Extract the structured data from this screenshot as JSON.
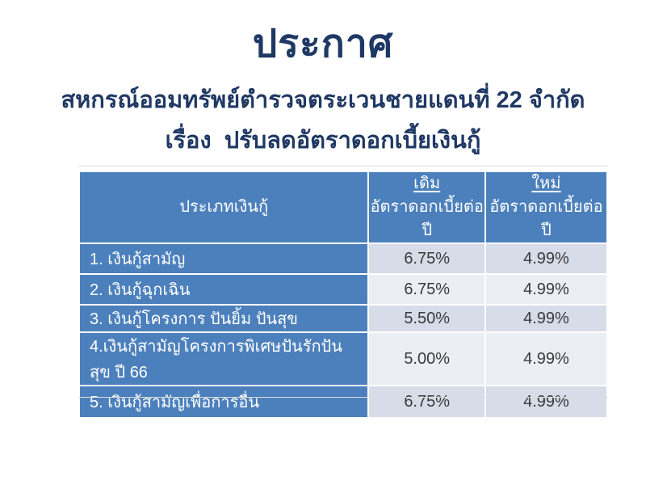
{
  "colors": {
    "title_navy": "#1F3864",
    "header_blue": "#4C80BC",
    "band_dark": "#D6DCE8",
    "band_light": "#EBEEF4",
    "body_text": "#3A3A3A"
  },
  "document": {
    "title": "ประกาศ",
    "org_line": "สหกรณ์ออมทรัพย์ตำรวจตระเวนชายแดนที่ 22 จำกัด",
    "subject_line": "เรื่อง  ปรับลดอัตราดอกเบี้ยเงินกู้"
  },
  "table": {
    "col1_header": "ประเภทเงินกู้",
    "col2_header_top": "เดิม",
    "col2_header_bottom": "อัตราดอกเบี้ยต่อปี",
    "col3_header_top": "ใหม่",
    "col3_header_bottom": "อัตราดอกเบี้ยต่อปี",
    "rows": [
      {
        "loan_type": "1. เงินกู้สามัญ",
        "old_rate": "6.75%",
        "new_rate": "4.99%"
      },
      {
        "loan_type": "2. เงินกู้ฉุกเฉิน",
        "old_rate": "6.75%",
        "new_rate": "4.99%"
      },
      {
        "loan_type": "3. เงินกู้โครงการ ปันยิ้ม ปันสุข",
        "old_rate": "5.50%",
        "new_rate": "4.99%"
      },
      {
        "loan_type": "4.เงินกู้สามัญโครงการพิเศษปันรักปันสุข ปี 66",
        "old_rate": "5.00%",
        "new_rate": "4.99%"
      },
      {
        "loan_type": "5. เงินกู้สามัญเพื่อการอื่น",
        "old_rate": "6.75%",
        "new_rate": "4.99%"
      }
    ]
  }
}
